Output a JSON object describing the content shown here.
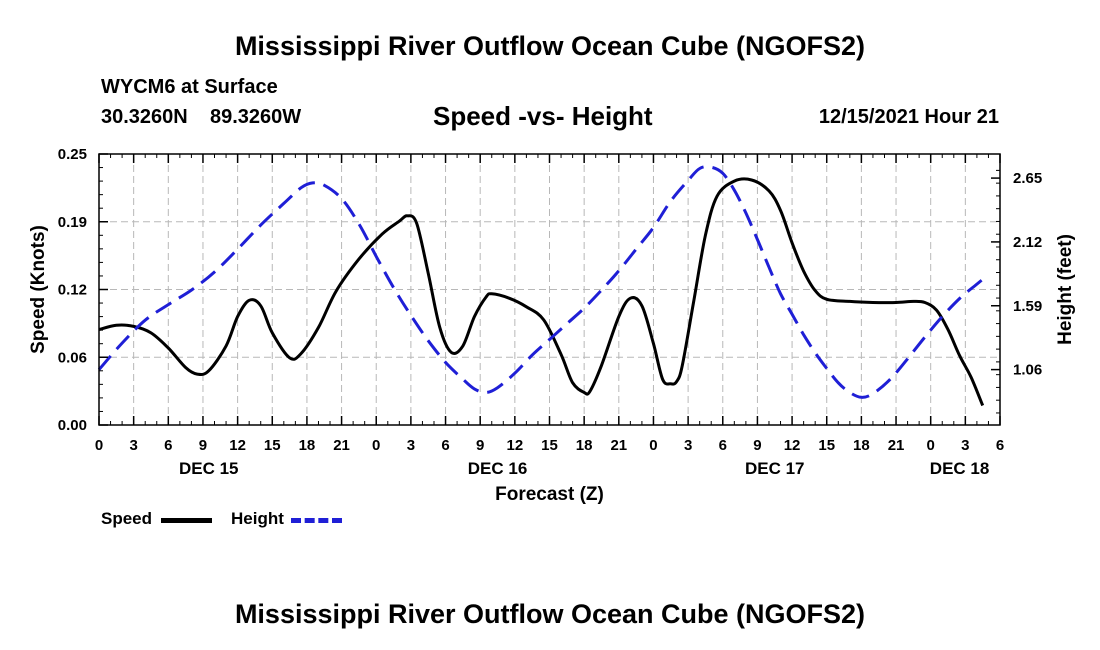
{
  "title_top": "Mississippi River Outflow Ocean Cube (NGOFS2)",
  "title_bottom": "Mississippi River Outflow Ocean Cube (NGOFS2)",
  "station": {
    "name": "WYCM6 at Surface",
    "lat": "30.3260N",
    "lon": "89.3260W"
  },
  "subtitle": "Speed -vs- Height",
  "timestamp": "12/15/2021 Hour 21",
  "legend": {
    "speed_label": "Speed",
    "height_label": "Height",
    "speed_color": "#000000",
    "height_color": "#1f1fd6"
  },
  "chart_data": {
    "type": "line",
    "title": "Speed -vs- Height",
    "xlabel": "Forecast (Z)",
    "ylabel": "Speed (Knots)",
    "y2label": "Height (feet)",
    "x_hours_range": [
      0,
      78
    ],
    "x_tick_labels": [
      "0",
      "3",
      "6",
      "9",
      "12",
      "15",
      "18",
      "21",
      "0",
      "3",
      "6",
      "9",
      "12",
      "15",
      "18",
      "21",
      "0",
      "3",
      "6",
      "9",
      "12",
      "15",
      "18",
      "21",
      "0",
      "3",
      "6"
    ],
    "x_day_labels": [
      {
        "label": "DEC 15",
        "hour": 9.5
      },
      {
        "label": "DEC 16",
        "hour": 34.5
      },
      {
        "label": "DEC 17",
        "hour": 58.5
      },
      {
        "label": "DEC 18",
        "hour": 74.5
      }
    ],
    "y_left": {
      "ticks": [
        "0.00",
        "0.06",
        "0.12",
        "0.19",
        "0.25"
      ],
      "range": [
        0,
        0.25
      ]
    },
    "y_right": {
      "ticks": [
        "1.06",
        "1.59",
        "2.12",
        "2.65"
      ],
      "values": [
        1.06,
        1.59,
        2.12,
        2.65
      ],
      "range": [
        0.6,
        2.85
      ]
    },
    "series": [
      {
        "name": "Speed",
        "axis": "left",
        "color": "#000000",
        "dash": false,
        "points": [
          [
            0,
            0.088
          ],
          [
            1.5,
            0.092
          ],
          [
            3,
            0.091
          ],
          [
            4.5,
            0.085
          ],
          [
            6,
            0.071
          ],
          [
            7.5,
            0.053
          ],
          [
            8.5,
            0.047
          ],
          [
            9.5,
            0.05
          ],
          [
            11,
            0.073
          ],
          [
            12,
            0.1
          ],
          [
            13,
            0.115
          ],
          [
            14,
            0.11
          ],
          [
            15,
            0.085
          ],
          [
            16.5,
            0.062
          ],
          [
            17.5,
            0.066
          ],
          [
            19,
            0.09
          ],
          [
            20.5,
            0.123
          ],
          [
            22.5,
            0.153
          ],
          [
            24.5,
            0.176
          ],
          [
            26,
            0.188
          ],
          [
            26.7,
            0.193
          ],
          [
            27.5,
            0.186
          ],
          [
            28.5,
            0.14
          ],
          [
            29.5,
            0.09
          ],
          [
            30.5,
            0.067
          ],
          [
            31.5,
            0.073
          ],
          [
            32.5,
            0.1
          ],
          [
            33.5,
            0.118
          ],
          [
            34,
            0.121
          ],
          [
            35.5,
            0.117
          ],
          [
            37,
            0.109
          ],
          [
            38.5,
            0.097
          ],
          [
            40,
            0.065
          ],
          [
            41,
            0.039
          ],
          [
            42,
            0.03
          ],
          [
            42.5,
            0.031
          ],
          [
            43.5,
            0.055
          ],
          [
            45,
            0.1
          ],
          [
            46,
            0.117
          ],
          [
            47,
            0.11
          ],
          [
            48,
            0.075
          ],
          [
            48.8,
            0.042
          ],
          [
            49.5,
            0.038
          ],
          [
            50,
            0.04
          ],
          [
            50.5,
            0.055
          ],
          [
            51.5,
            0.115
          ],
          [
            52.5,
            0.175
          ],
          [
            53.5,
            0.211
          ],
          [
            55,
            0.225
          ],
          [
            56.5,
            0.226
          ],
          [
            58,
            0.216
          ],
          [
            59,
            0.198
          ],
          [
            60,
            0.168
          ],
          [
            61,
            0.142
          ],
          [
            62,
            0.124
          ],
          [
            63,
            0.116
          ],
          [
            65,
            0.114
          ],
          [
            67,
            0.113
          ],
          [
            69,
            0.113
          ],
          [
            70.5,
            0.114
          ],
          [
            71.5,
            0.113
          ],
          [
            72.5,
            0.106
          ],
          [
            73.5,
            0.088
          ],
          [
            74.5,
            0.064
          ],
          [
            75.5,
            0.044
          ],
          [
            76.5,
            0.018
          ]
        ]
      },
      {
        "name": "Height",
        "axis": "right",
        "color": "#1f1fd6",
        "dash": true,
        "points": [
          [
            0,
            1.06
          ],
          [
            2,
            1.28
          ],
          [
            4,
            1.47
          ],
          [
            6,
            1.6
          ],
          [
            8,
            1.72
          ],
          [
            10,
            1.87
          ],
          [
            12,
            2.06
          ],
          [
            14,
            2.26
          ],
          [
            16,
            2.44
          ],
          [
            17.5,
            2.57
          ],
          [
            18.5,
            2.61
          ],
          [
            19.5,
            2.59
          ],
          [
            21,
            2.48
          ],
          [
            22.5,
            2.27
          ],
          [
            24,
            2.0
          ],
          [
            25.5,
            1.74
          ],
          [
            27,
            1.51
          ],
          [
            28.5,
            1.3
          ],
          [
            30,
            1.12
          ],
          [
            31.5,
            0.98
          ],
          [
            32.5,
            0.9
          ],
          [
            33.5,
            0.87
          ],
          [
            34.5,
            0.91
          ],
          [
            36,
            1.03
          ],
          [
            37.5,
            1.18
          ],
          [
            39,
            1.31
          ],
          [
            40.5,
            1.44
          ],
          [
            42,
            1.57
          ],
          [
            43.5,
            1.72
          ],
          [
            45,
            1.88
          ],
          [
            46.5,
            2.06
          ],
          [
            48,
            2.24
          ],
          [
            49.5,
            2.46
          ],
          [
            51,
            2.63
          ],
          [
            52,
            2.73
          ],
          [
            53,
            2.74
          ],
          [
            54,
            2.69
          ],
          [
            55,
            2.55
          ],
          [
            56,
            2.36
          ],
          [
            57,
            2.14
          ],
          [
            58,
            1.91
          ],
          [
            59,
            1.69
          ],
          [
            60,
            1.52
          ],
          [
            61,
            1.35
          ],
          [
            62,
            1.2
          ],
          [
            63,
            1.07
          ],
          [
            64,
            0.95
          ],
          [
            65,
            0.87
          ],
          [
            66,
            0.83
          ],
          [
            67,
            0.86
          ],
          [
            68.5,
            0.98
          ],
          [
            70,
            1.15
          ],
          [
            71.5,
            1.33
          ],
          [
            73,
            1.5
          ],
          [
            74.5,
            1.65
          ],
          [
            76,
            1.77
          ],
          [
            76.9,
            1.84
          ]
        ]
      }
    ]
  }
}
